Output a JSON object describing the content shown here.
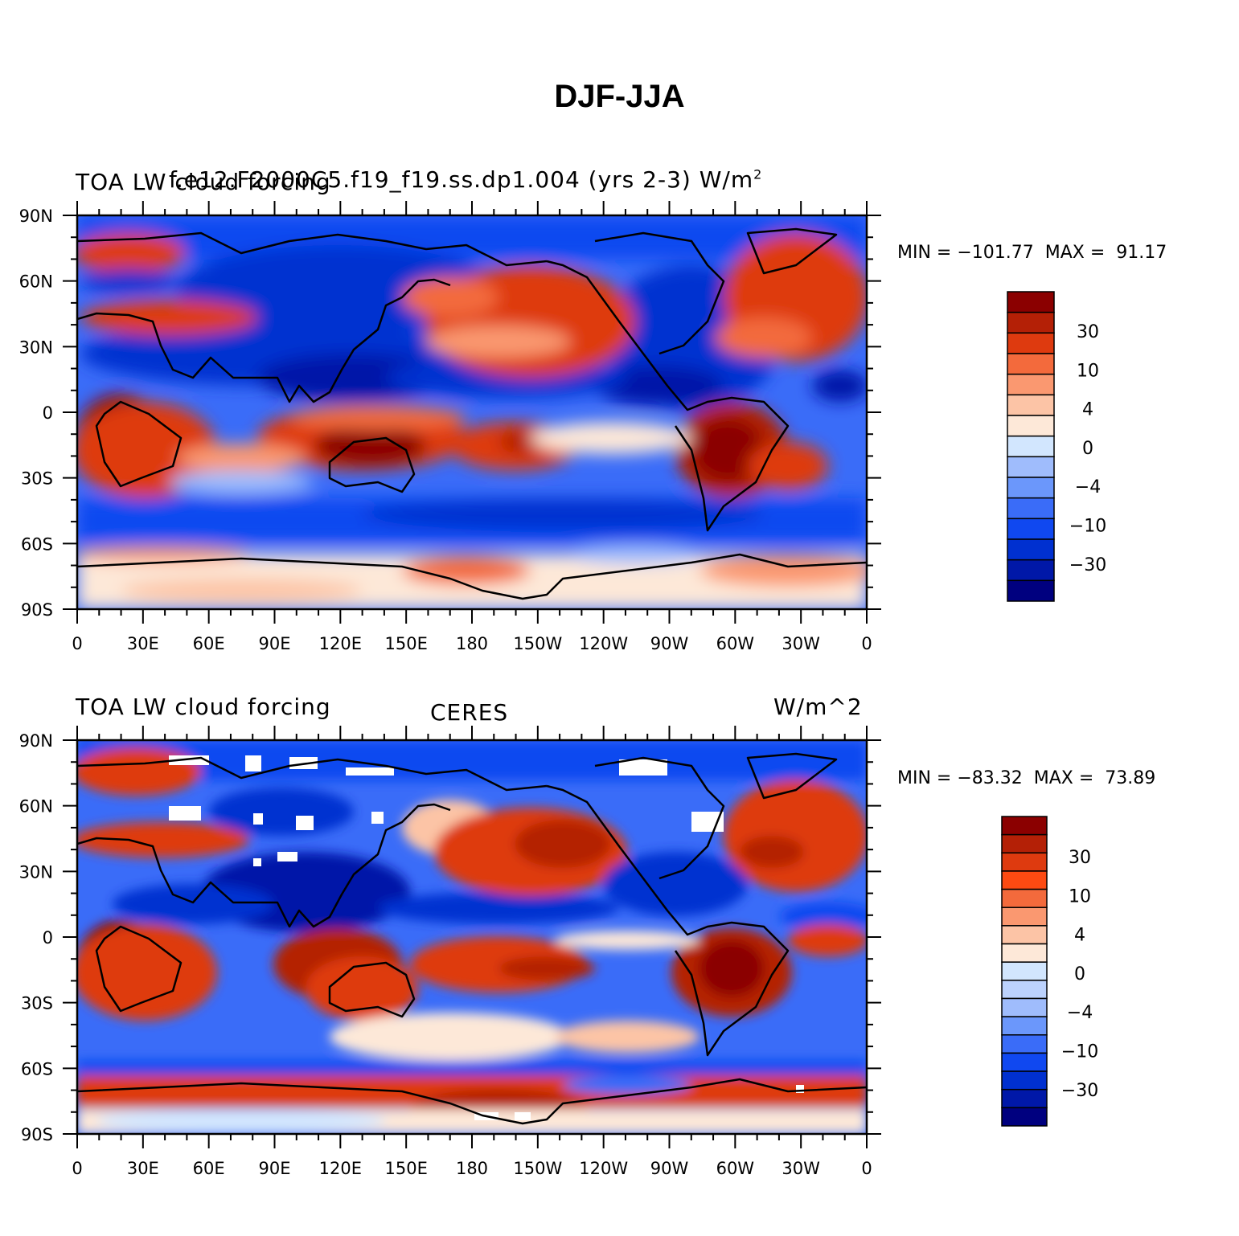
{
  "figure": {
    "title": "DJF-JJA"
  },
  "colors": {
    "levels_model": [
      "#00007f",
      "#0018a8",
      "#0030d0",
      "#1048f0",
      "#3a6cf8",
      "#6b97fb",
      "#9fbcfc",
      "#d2e6fe",
      "#fde8d8",
      "#fcc4a6",
      "#fa9870",
      "#f36a3c",
      "#de3a0f",
      "#b42006",
      "#8b0000"
    ],
    "levels_obs": [
      "#00007f",
      "#0018a8",
      "#0030d0",
      "#1048f0",
      "#3a6cf8",
      "#6b97fb",
      "#9fbcfc",
      "#bcd2fd",
      "#d2e6fe",
      "#fde8d8",
      "#fcc4a6",
      "#fa9870",
      "#f36a3c",
      "#fd4a12",
      "#de3a0f",
      "#b42006",
      "#8b0000"
    ],
    "coast": "#000000"
  },
  "axes": {
    "lat_ticks": [
      "90N",
      "60N",
      "30N",
      "0",
      "30S",
      "60S",
      "90S"
    ],
    "lon_ticks": [
      "0",
      "30E",
      "60E",
      "90E",
      "120E",
      "150E",
      "180",
      "150W",
      "120W",
      "90W",
      "60W",
      "30W",
      "0"
    ]
  },
  "panels": [
    {
      "id": "model",
      "left_label": "TOA LW cloud forcing",
      "case_label": "f.e12.F2000C5.f19_f19.ss.dp1.004 (yrs 2-3)",
      "units_label": "W/m",
      "units_superscript": "2",
      "minmax": "MIN = −101.77  MAX =  91.17",
      "colorbar_labels": [
        "30",
        "10",
        "4",
        "0",
        "−4",
        "−10",
        "−30"
      ]
    },
    {
      "id": "obs",
      "left_label": "TOA LW cloud forcing",
      "center_label": "CERES",
      "units_label": "W/m^2",
      "minmax": "MIN = −83.32  MAX =  73.89",
      "colorbar_labels": [
        "30",
        "10",
        "4",
        "0",
        "−4",
        "−10",
        "−30"
      ]
    }
  ]
}
